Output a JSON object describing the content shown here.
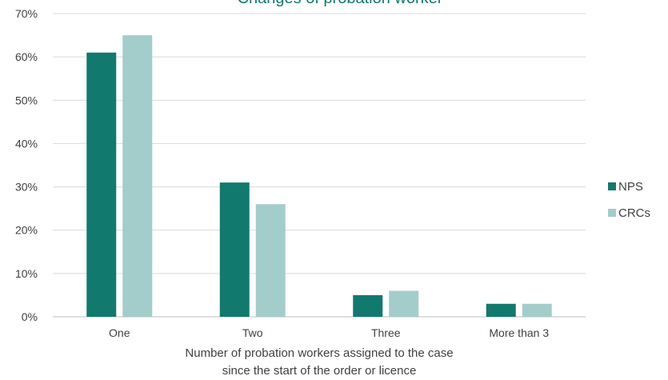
{
  "chart_data": {
    "type": "bar",
    "title": "Changes of probation worker",
    "categories": [
      "One",
      "Two",
      "Three",
      "More than 3"
    ],
    "series": [
      {
        "name": "NPS",
        "color": "#12796e",
        "values": [
          61,
          31,
          5,
          3
        ]
      },
      {
        "name": "CRCs",
        "color": "#a3cdca",
        "values": [
          65,
          26,
          6,
          3
        ]
      }
    ],
    "xlabel_lines": [
      "Number of probation  workers assigned to the case",
      "since the start of the order or licence"
    ],
    "ylabel": "",
    "ylim": [
      0,
      70
    ],
    "yticks": [
      "0%",
      "10%",
      "20%",
      "30%",
      "40%",
      "50%",
      "60%",
      "70%"
    ],
    "grid": true,
    "legend_position": "right"
  }
}
